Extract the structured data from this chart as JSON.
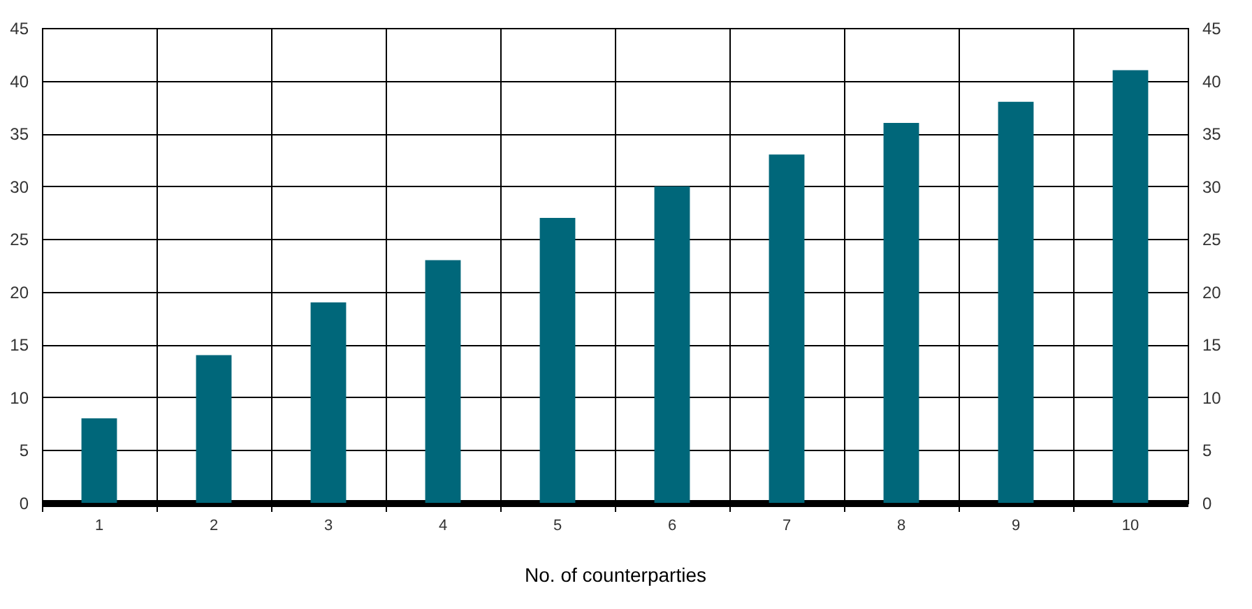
{
  "chart_data": {
    "type": "bar",
    "xlabel": "No. of counterparties",
    "categories": [
      "1",
      "2",
      "3",
      "4",
      "5",
      "6",
      "7",
      "8",
      "9",
      "10"
    ],
    "values": [
      8,
      14,
      19,
      23,
      27,
      30,
      33,
      36,
      38,
      41
    ],
    "color": "#00677a",
    "ylim": [
      0,
      45
    ],
    "yticks": [
      0,
      5,
      10,
      15,
      20,
      25,
      30,
      35,
      40,
      45
    ],
    "y2lim": [
      0,
      45
    ],
    "y2ticks": [
      0,
      5,
      10,
      15,
      20,
      25,
      30,
      35,
      40,
      45
    ],
    "grid": true
  }
}
